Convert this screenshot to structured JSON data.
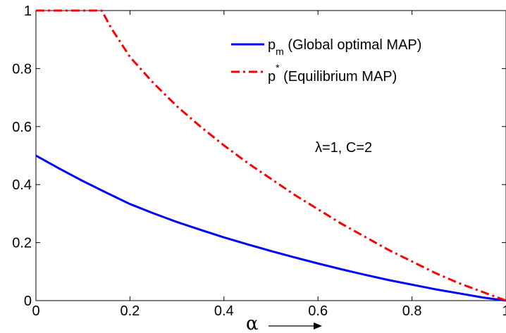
{
  "chart_data": {
    "type": "line",
    "xlabel": "α",
    "ylabel": "",
    "xlim": [
      0,
      1
    ],
    "ylim": [
      0,
      1
    ],
    "x_ticks": [
      "0",
      "0.2",
      "0.4",
      "0.6",
      "0.8",
      "1"
    ],
    "y_ticks": [
      "0",
      "0.2",
      "0.4",
      "0.6",
      "0.8",
      "1"
    ],
    "grid": false,
    "legend_position": "top-right",
    "annotation": "λ=1, C=2",
    "series": [
      {
        "name_main": "p",
        "name_sub": "m",
        "name_rest": " (Global optimal MAP)",
        "color": "#0000ff",
        "style": "solid",
        "x": [
          0,
          0.05,
          0.1,
          0.15,
          0.2,
          0.25,
          0.3,
          0.35,
          0.4,
          0.45,
          0.5,
          0.55,
          0.6,
          0.65,
          0.7,
          0.75,
          0.8,
          0.85,
          0.9,
          0.95,
          1.0
        ],
        "y": [
          0.5,
          0.455,
          0.412,
          0.372,
          0.333,
          0.301,
          0.271,
          0.244,
          0.218,
          0.194,
          0.171,
          0.149,
          0.128,
          0.108,
          0.089,
          0.071,
          0.055,
          0.039,
          0.025,
          0.011,
          0.0
        ]
      },
      {
        "name_main": "p",
        "name_sup": "*",
        "name_rest": " (Equilibrium MAP)",
        "color": "#ff0000",
        "style": "dashdot",
        "x": [
          0,
          0.05,
          0.1,
          0.14,
          0.16,
          0.2,
          0.25,
          0.3,
          0.35,
          0.4,
          0.45,
          0.5,
          0.55,
          0.6,
          0.65,
          0.7,
          0.75,
          0.8,
          0.85,
          0.9,
          0.95,
          1.0
        ],
        "y": [
          1.0,
          1.0,
          1.0,
          1.0,
          0.94,
          0.84,
          0.75,
          0.67,
          0.6,
          0.535,
          0.475,
          0.42,
          0.365,
          0.315,
          0.265,
          0.22,
          0.175,
          0.135,
          0.095,
          0.06,
          0.03,
          0.0
        ]
      }
    ]
  }
}
